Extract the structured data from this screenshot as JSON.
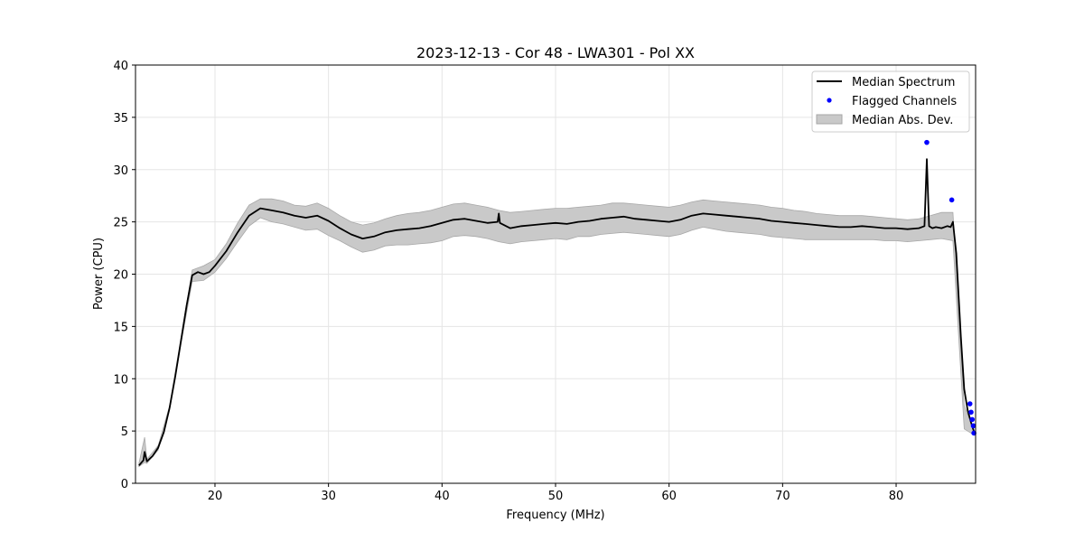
{
  "chart_data": {
    "type": "line",
    "title": "2023-12-13 - Cor 48 - LWA301 - Pol XX",
    "xlabel": "Frequency (MHz)",
    "ylabel": "Power (CPU)",
    "xlim": [
      13,
      87
    ],
    "ylim": [
      0,
      40
    ],
    "xticks": [
      20,
      30,
      40,
      50,
      60,
      70,
      80
    ],
    "yticks": [
      0,
      5,
      10,
      15,
      20,
      25,
      30,
      35,
      40
    ],
    "grid": true,
    "legend_position": "top-right",
    "series": [
      {
        "name": "Median Spectrum",
        "kind": "line",
        "color": "#000000",
        "x": [
          13.3,
          13.7,
          13.8,
          14.0,
          14.5,
          15.0,
          15.5,
          16.0,
          16.5,
          17.0,
          17.5,
          18.0,
          18.5,
          19.0,
          19.5,
          20.0,
          21.0,
          22.0,
          23.0,
          24.0,
          25.0,
          26.0,
          27.0,
          28.0,
          29.0,
          30.0,
          31.0,
          32.0,
          33.0,
          34.0,
          35.0,
          36.0,
          37.0,
          38.0,
          39.0,
          40.0,
          41.0,
          42.0,
          43.0,
          44.0,
          44.9,
          45.0,
          45.1,
          46.0,
          47.0,
          48.0,
          49.0,
          50.0,
          51.0,
          52.0,
          53.0,
          54.0,
          55.0,
          56.0,
          57.0,
          58.0,
          59.0,
          60.0,
          61.0,
          62.0,
          63.0,
          64.0,
          65.0,
          66.0,
          67.0,
          68.0,
          69.0,
          70.0,
          71.0,
          72.0,
          73.0,
          74.0,
          75.0,
          76.0,
          77.0,
          78.0,
          79.0,
          80.0,
          81.0,
          82.0,
          82.5,
          82.7,
          82.9,
          83.2,
          83.5,
          84.0,
          84.5,
          84.8,
          85.0,
          85.3,
          85.7,
          86.0,
          86.3,
          86.6,
          86.9
        ],
        "y": [
          1.7,
          2.2,
          3.0,
          2.1,
          2.6,
          3.4,
          4.9,
          7.2,
          10.2,
          13.6,
          17.0,
          19.9,
          20.2,
          20.0,
          20.2,
          20.8,
          22.2,
          24.0,
          25.6,
          26.3,
          26.1,
          25.9,
          25.6,
          25.4,
          25.6,
          25.1,
          24.4,
          23.8,
          23.4,
          23.6,
          24.0,
          24.2,
          24.3,
          24.4,
          24.6,
          24.9,
          25.2,
          25.3,
          25.1,
          24.9,
          25.0,
          25.8,
          24.9,
          24.4,
          24.6,
          24.7,
          24.8,
          24.9,
          24.8,
          25.0,
          25.1,
          25.3,
          25.4,
          25.5,
          25.3,
          25.2,
          25.1,
          25.0,
          25.2,
          25.6,
          25.8,
          25.7,
          25.6,
          25.5,
          25.4,
          25.3,
          25.1,
          25.0,
          24.9,
          24.8,
          24.7,
          24.6,
          24.5,
          24.5,
          24.6,
          24.5,
          24.4,
          24.4,
          24.3,
          24.4,
          24.6,
          31.0,
          24.6,
          24.4,
          24.5,
          24.4,
          24.6,
          24.5,
          25.0,
          22.0,
          14.0,
          9.0,
          7.0,
          5.8,
          4.8
        ]
      },
      {
        "name": "Flagged Channels",
        "kind": "scatter",
        "color": "#0000ff",
        "x": [
          82.7,
          84.9,
          86.5,
          86.6,
          86.7,
          86.8,
          86.85
        ],
        "y": [
          32.6,
          27.1,
          7.6,
          6.8,
          6.1,
          5.5,
          4.8
        ]
      },
      {
        "name": "Median Abs. Dev.",
        "kind": "band",
        "color": "#c9c9c9",
        "x": [
          13.3,
          13.8,
          14.0,
          15.0,
          16.0,
          17.0,
          18.0,
          19.0,
          20.0,
          21.0,
          22.0,
          23.0,
          24.0,
          25.0,
          26.0,
          27.0,
          28.0,
          29.0,
          30.0,
          31.0,
          32.0,
          33.0,
          34.0,
          35.0,
          36.0,
          37.0,
          38.0,
          39.0,
          40.0,
          41.0,
          42.0,
          43.0,
          44.0,
          45.0,
          46.0,
          47.0,
          48.0,
          49.0,
          50.0,
          51.0,
          52.0,
          53.0,
          54.0,
          55.0,
          56.0,
          57.0,
          58.0,
          59.0,
          60.0,
          61.0,
          62.0,
          63.0,
          64.0,
          65.0,
          66.0,
          67.0,
          68.0,
          69.0,
          70.0,
          71.0,
          72.0,
          73.0,
          74.0,
          75.0,
          76.0,
          77.0,
          78.0,
          79.0,
          80.0,
          81.0,
          82.0,
          83.0,
          84.0,
          85.0,
          86.0,
          86.9
        ],
        "upper": [
          1.9,
          4.4,
          2.3,
          3.6,
          7.4,
          13.9,
          20.4,
          20.8,
          21.4,
          22.9,
          24.9,
          26.6,
          27.2,
          27.2,
          27.0,
          26.6,
          26.5,
          26.8,
          26.3,
          25.6,
          25.0,
          24.7,
          24.9,
          25.3,
          25.6,
          25.8,
          25.9,
          26.1,
          26.4,
          26.7,
          26.8,
          26.6,
          26.4,
          26.1,
          25.9,
          26.0,
          26.1,
          26.2,
          26.3,
          26.3,
          26.4,
          26.5,
          26.6,
          26.8,
          26.8,
          26.7,
          26.6,
          26.5,
          26.4,
          26.6,
          26.9,
          27.1,
          27.0,
          26.9,
          26.8,
          26.7,
          26.6,
          26.4,
          26.3,
          26.1,
          26.0,
          25.8,
          25.7,
          25.6,
          25.6,
          25.6,
          25.5,
          25.4,
          25.3,
          25.2,
          25.3,
          25.6,
          25.9,
          25.9,
          7.4,
          5.0
        ],
        "lower": [
          1.6,
          2.0,
          1.9,
          3.2,
          7.0,
          13.3,
          19.3,
          19.4,
          20.2,
          21.5,
          23.1,
          24.6,
          25.4,
          25.0,
          24.8,
          24.5,
          24.2,
          24.3,
          23.7,
          23.2,
          22.6,
          22.1,
          22.3,
          22.7,
          22.8,
          22.8,
          22.9,
          23.0,
          23.2,
          23.6,
          23.7,
          23.6,
          23.4,
          23.1,
          22.9,
          23.1,
          23.2,
          23.3,
          23.4,
          23.3,
          23.6,
          23.6,
          23.8,
          23.9,
          24.0,
          23.9,
          23.8,
          23.7,
          23.6,
          23.8,
          24.2,
          24.5,
          24.3,
          24.1,
          24.0,
          23.9,
          23.8,
          23.6,
          23.5,
          23.4,
          23.3,
          23.3,
          23.3,
          23.3,
          23.3,
          23.3,
          23.3,
          23.2,
          23.2,
          23.1,
          23.2,
          23.3,
          23.4,
          23.2,
          5.2,
          4.6
        ]
      }
    ]
  }
}
